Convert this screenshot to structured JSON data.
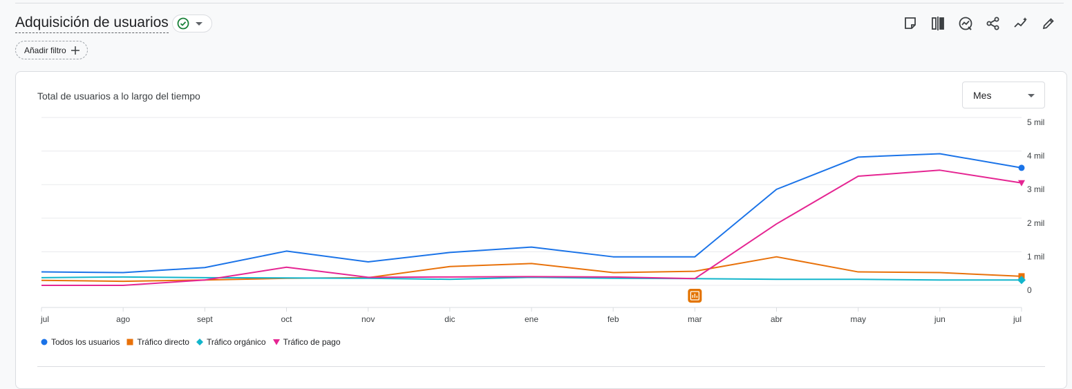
{
  "header": {
    "title": "Adquisición de usuarios",
    "filter_label": "Añadir filtro"
  },
  "toolbar": {
    "icons": [
      "note-icon",
      "compare-icon",
      "insights-icon",
      "share-icon",
      "trend-icon",
      "edit-icon"
    ]
  },
  "card": {
    "title": "Total de usuarios a lo largo del tiempo",
    "period_selected": "Mes"
  },
  "colors": {
    "accent_green": "#188038",
    "blue": "#1a73e8",
    "orange": "#e8710a",
    "teal": "#12b5cb",
    "pink": "#e52592",
    "annotation": "#e37400"
  },
  "chart_data": {
    "type": "line",
    "title": "Total de usuarios a lo largo del tiempo",
    "categories": [
      "jul",
      "ago",
      "sept",
      "oct",
      "nov",
      "dic",
      "ene",
      "feb",
      "mar",
      "abr",
      "may",
      "jun",
      "jul"
    ],
    "y_ticks": [
      "5 mil",
      "4 mil",
      "3 mil",
      "2 mil",
      "1 mil",
      "0"
    ],
    "ylim": [
      0,
      5000
    ],
    "grid": true,
    "legend_position": "bottom-left",
    "annotation": {
      "category_index": 8,
      "icon": "annotation-icon"
    },
    "series": [
      {
        "name": "Todos los usuarios",
        "color": "#1a73e8",
        "marker": "circle",
        "values": [
          400,
          380,
          530,
          1020,
          700,
          980,
          1140,
          850,
          850,
          2860,
          3820,
          3920,
          3500
        ]
      },
      {
        "name": "Tráfico directo",
        "color": "#e8710a",
        "marker": "square",
        "values": [
          150,
          120,
          160,
          210,
          230,
          560,
          650,
          380,
          420,
          850,
          400,
          380,
          270
        ]
      },
      {
        "name": "Tráfico orgánico",
        "color": "#12b5cb",
        "marker": "diamond",
        "values": [
          230,
          250,
          230,
          220,
          210,
          180,
          240,
          210,
          200,
          180,
          180,
          160,
          160
        ]
      },
      {
        "name": "Tráfico de pago",
        "color": "#e52592",
        "marker": "triangle",
        "values": [
          0,
          0,
          160,
          540,
          240,
          250,
          260,
          250,
          200,
          1830,
          3250,
          3430,
          3050
        ]
      }
    ]
  }
}
